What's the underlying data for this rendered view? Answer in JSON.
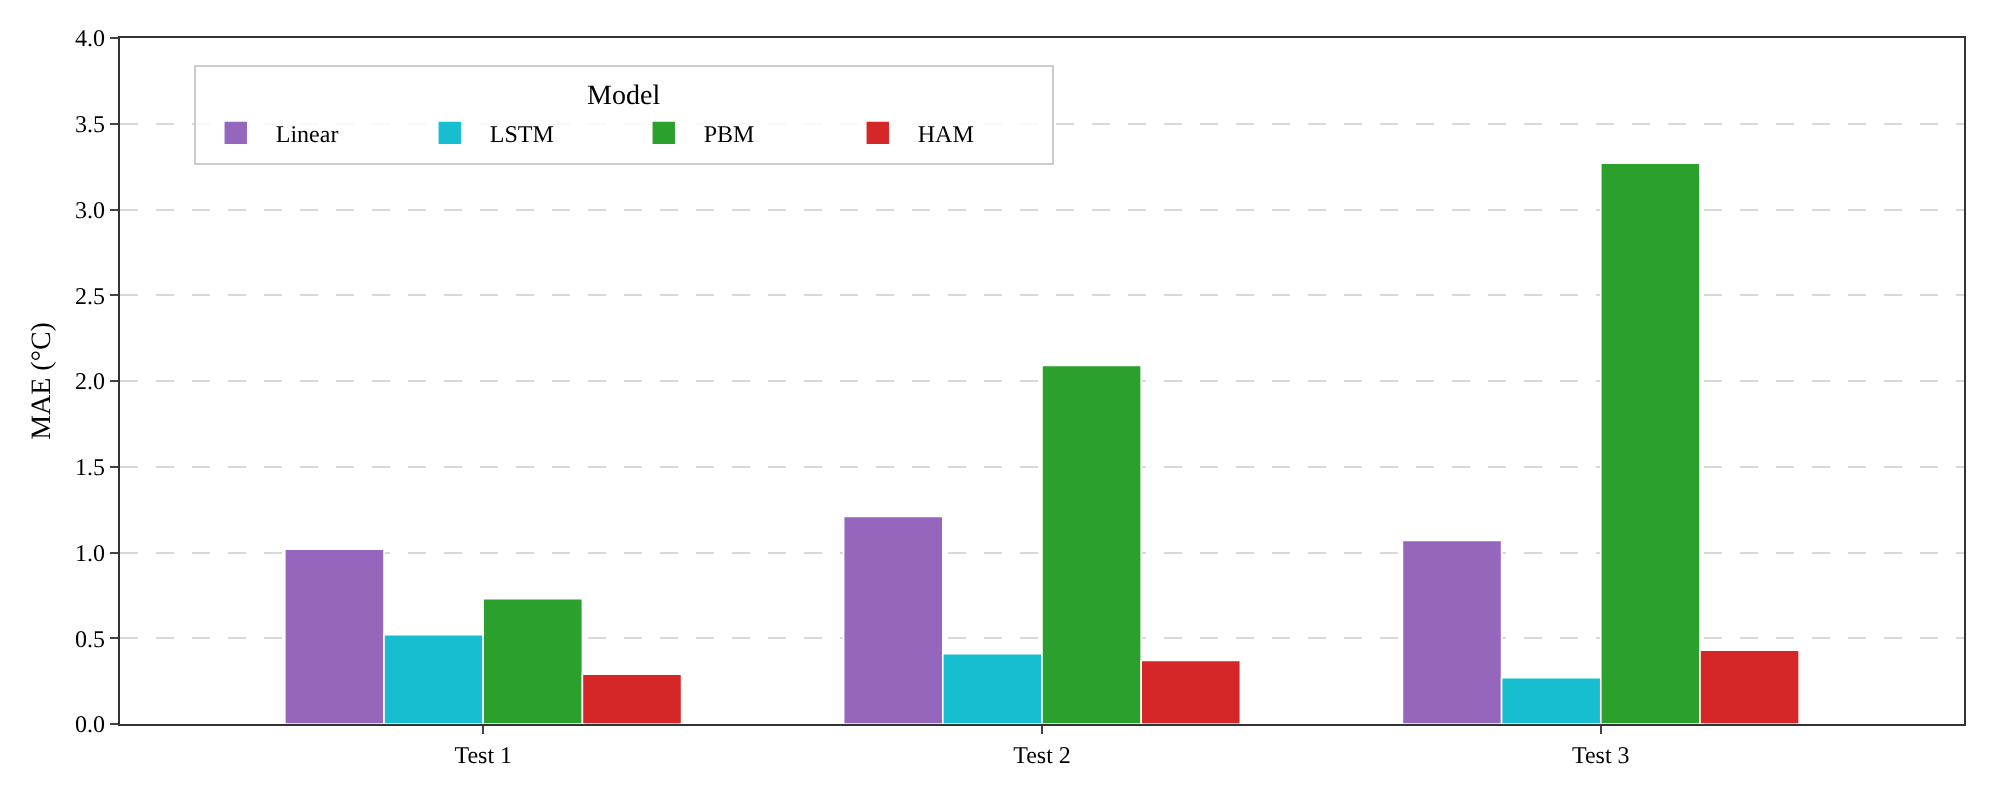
{
  "chart_data": {
    "type": "bar",
    "ylabel": "MAE (°C)",
    "legend_title": "Model",
    "categories": [
      "Test 1",
      "Test 2",
      "Test 3"
    ],
    "series": [
      {
        "name": "Linear",
        "color": "#9467bd",
        "values": [
          1.02,
          1.21,
          1.07
        ]
      },
      {
        "name": "LSTM",
        "color": "#17becf",
        "values": [
          0.52,
          0.41,
          0.27
        ]
      },
      {
        "name": "PBM",
        "color": "#2ca02c",
        "values": [
          0.73,
          2.09,
          3.27
        ]
      },
      {
        "name": "HAM",
        "color": "#d62728",
        "values": [
          0.29,
          0.37,
          0.43
        ]
      }
    ],
    "ylim": [
      0,
      4.0
    ],
    "yticks": [
      {
        "value": 0,
        "label": "0.0"
      },
      0.5,
      {
        "value": 1,
        "label": "1.0"
      },
      1.5,
      {
        "value": 2,
        "label": "2.0"
      },
      2.5,
      {
        "value": 3,
        "label": "3.0"
      },
      3.5,
      {
        "value": 4,
        "label": "4.0"
      }
    ],
    "grid": "y",
    "legend": "top left"
  }
}
